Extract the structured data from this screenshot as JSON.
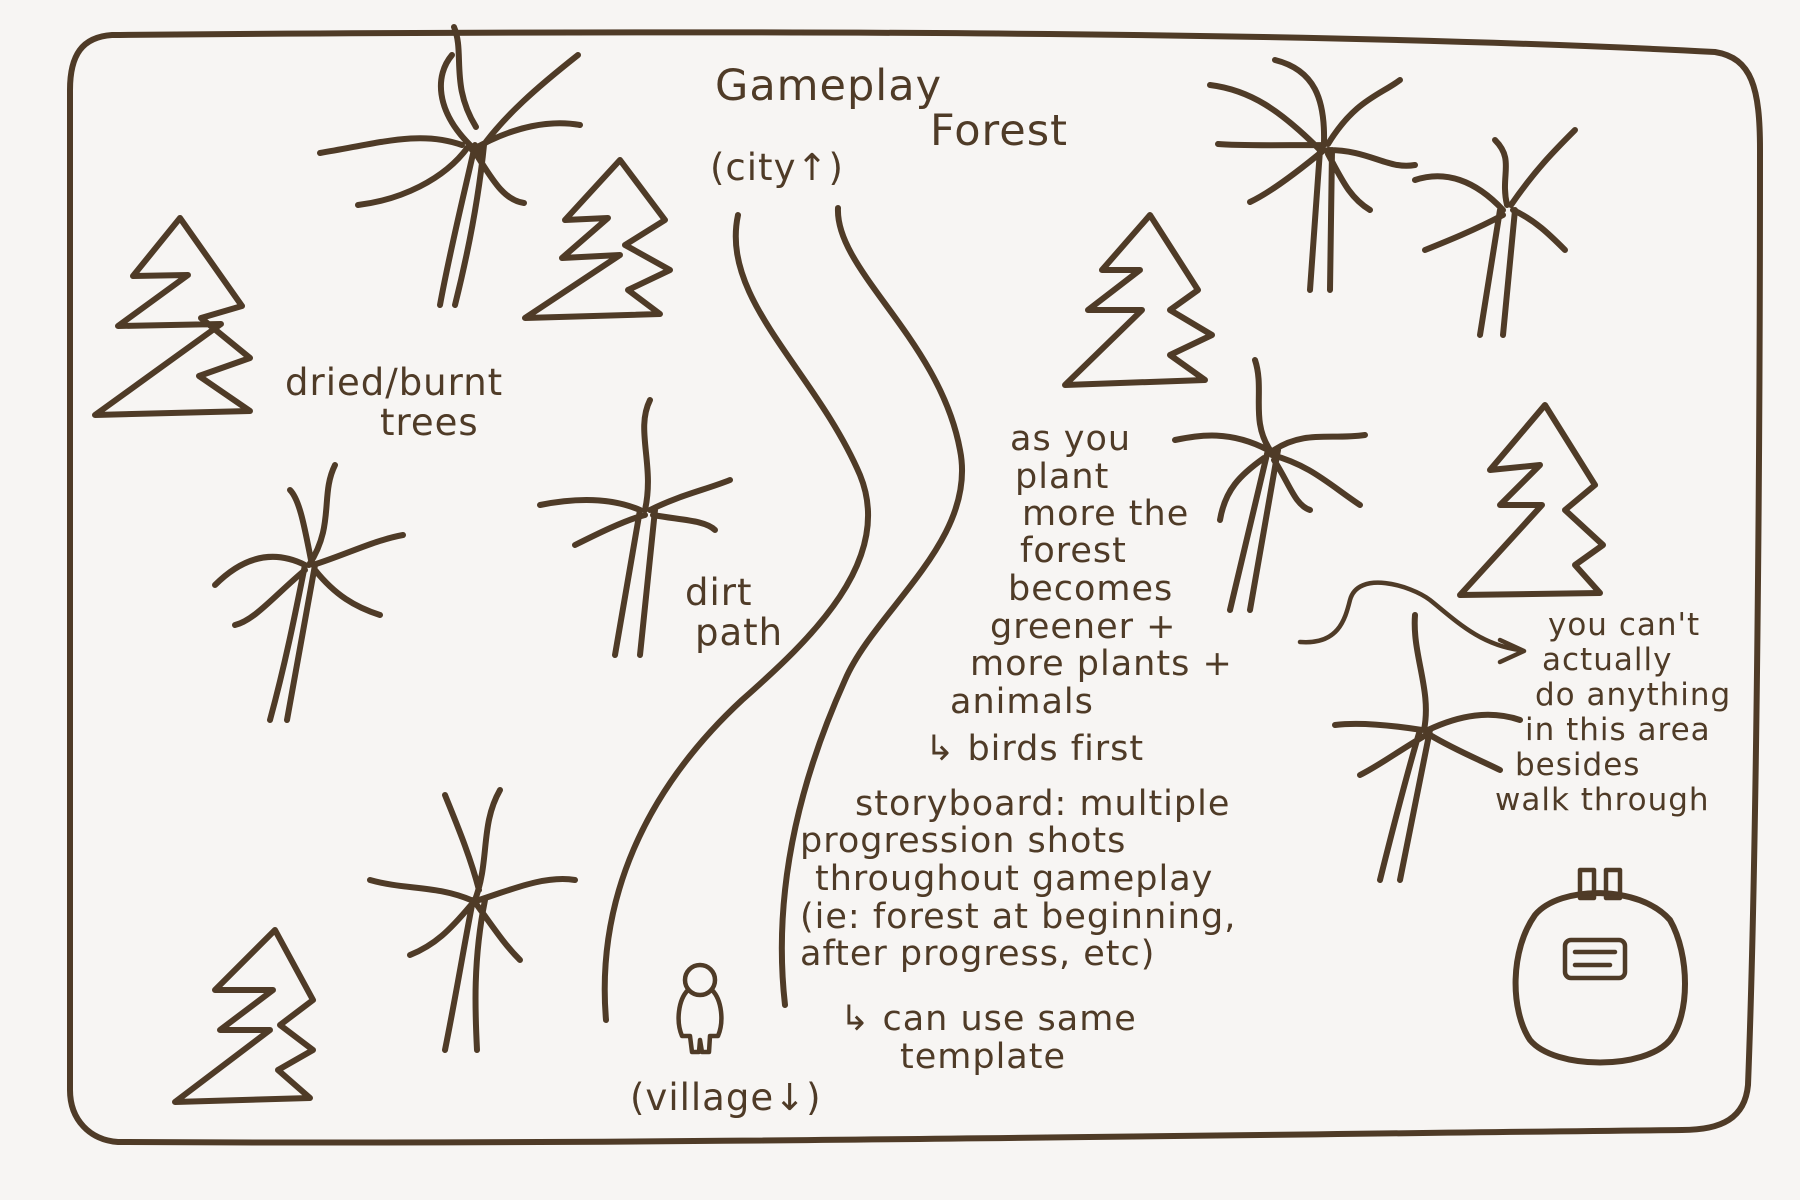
{
  "title": {
    "line1": "Gameplay",
    "line2": "Forest"
  },
  "directions": {
    "city": "(city↑)",
    "village": "(village↓)"
  },
  "labels": {
    "dried_trees": [
      "dried/burnt",
      "trees"
    ],
    "dirt_path": [
      "dirt",
      "path"
    ]
  },
  "notes": {
    "growth": [
      "as you",
      "plant",
      "more the",
      "forest",
      "becomes",
      "greener +",
      "more plants +",
      "animals"
    ],
    "birds_first": "↳ birds first",
    "storyboard": [
      "storyboard: multiple",
      "progression shots",
      "throughout gameplay",
      "(ie: forest at beginning,",
      "after progress, etc)"
    ],
    "template": [
      "↳ can use same",
      "template"
    ],
    "area": [
      "you can't",
      "actually",
      "do anything",
      "in this area",
      "besides",
      "walk through"
    ]
  },
  "icons": {
    "frame": "map-border",
    "path": "dirt-path",
    "pine": "pine-tree-icon",
    "dead": "dead-palm-tree-icon",
    "player": "player-figure-icon",
    "pack": "backpack-icon",
    "arrow": "curved-arrow-icon"
  },
  "colors": {
    "ink": "#4f3b27",
    "paper": "#f7f5f3"
  }
}
